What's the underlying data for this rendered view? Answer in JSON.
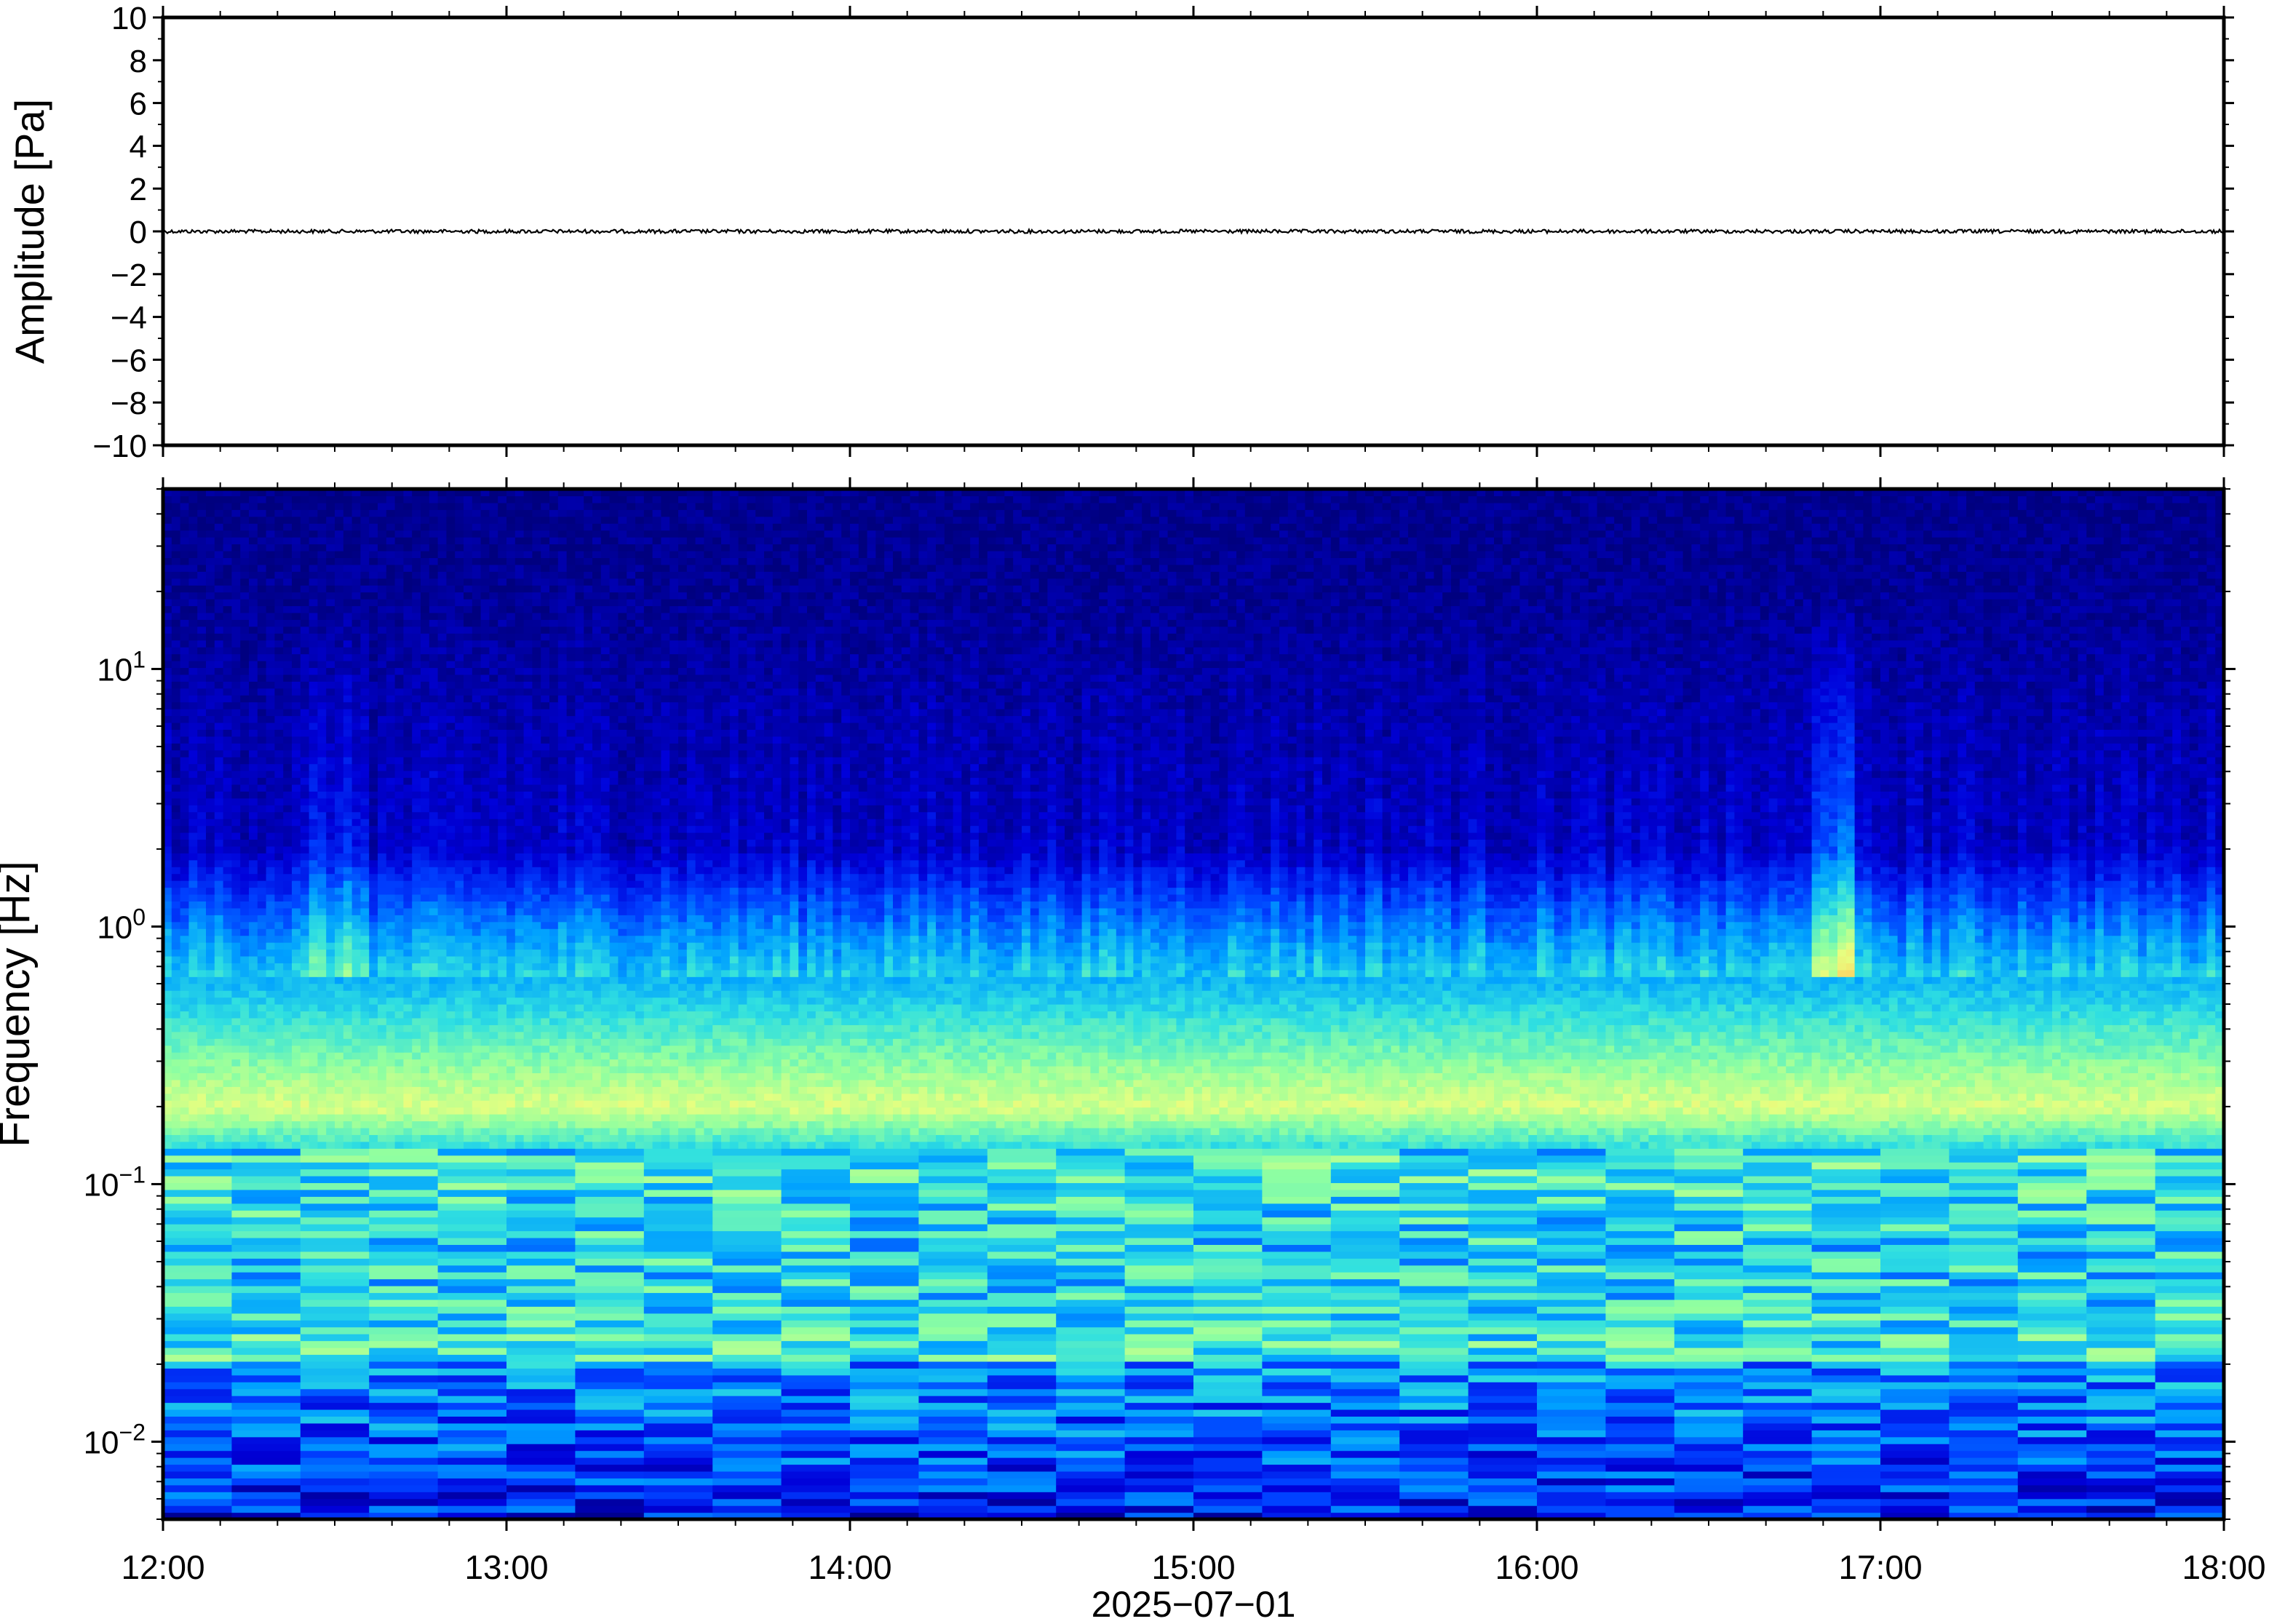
{
  "chart_data": [
    {
      "type": "line",
      "panel": "waveform",
      "ylabel": "Amplitude [Pa]",
      "ylim": [
        -10,
        10
      ],
      "yticks": [
        10,
        8,
        6,
        4,
        2,
        0,
        -2,
        -4,
        -6,
        -8,
        -10
      ],
      "ytick_labels": [
        "10",
        "8",
        "6",
        "4",
        "2",
        "0",
        "−2",
        "−4",
        "−6",
        "−8",
        "−10"
      ],
      "xlim": [
        "12:00",
        "18:00"
      ],
      "series": [
        {
          "values_description_free": true,
          "x": [
            "12:00",
            "13:00",
            "14:00",
            "15:00",
            "16:00",
            "17:00",
            "18:00"
          ],
          "y": [
            0,
            0,
            0,
            0,
            0,
            0,
            0
          ]
        }
      ],
      "line_color": "#000000"
    },
    {
      "type": "heatmap",
      "panel": "spectrogram",
      "ylabel": "Frequency [Hz]",
      "yscale": "log",
      "ylim_hz": [
        0.005,
        50
      ],
      "yticks": [
        {
          "base": "10",
          "exp": "1",
          "value": 10
        },
        {
          "base": "10",
          "exp": "0",
          "value": 1
        },
        {
          "base": "10",
          "exp": "−1",
          "value": 0.1
        },
        {
          "base": "10",
          "exp": "−2",
          "value": 0.01
        }
      ],
      "xlabel": "2025−07−01",
      "xtick_labels": [
        "12:00",
        "13:00",
        "14:00",
        "15:00",
        "16:00",
        "17:00",
        "18:00"
      ],
      "colormap": [
        "#00007f",
        "#0000d9",
        "#0040ff",
        "#00a0ff",
        "#30e0e0",
        "#90ffa0",
        "#e6ff80",
        "#ffd060",
        "#ff8040"
      ],
      "background_peak_band_hz": [
        0.15,
        0.25
      ],
      "microbarom_peak_hz": 0.2
    }
  ]
}
